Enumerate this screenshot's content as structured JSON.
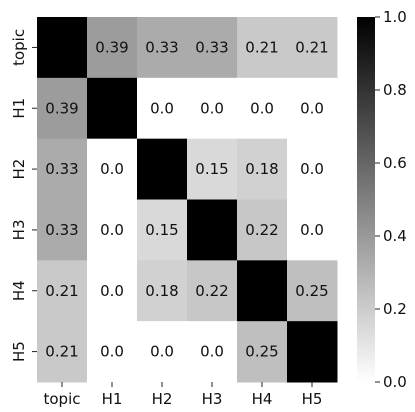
{
  "chart_data": {
    "type": "heatmap",
    "title": "",
    "xlabel": "",
    "ylabel": "",
    "x_labels": [
      "topic",
      "H1",
      "H2",
      "H3",
      "H4",
      "H5"
    ],
    "y_labels": [
      "topic",
      "H1",
      "H2",
      "H3",
      "H4",
      "H5"
    ],
    "values": [
      [
        1.0,
        0.39,
        0.33,
        0.33,
        0.21,
        0.21
      ],
      [
        0.39,
        1.0,
        0.0,
        0.0,
        0.0,
        0.0
      ],
      [
        0.33,
        0.0,
        1.0,
        0.15,
        0.18,
        0.0
      ],
      [
        0.33,
        0.0,
        0.15,
        1.0,
        0.22,
        0.0
      ],
      [
        0.21,
        0.0,
        0.18,
        0.22,
        1.0,
        0.25
      ],
      [
        0.21,
        0.0,
        0.0,
        0.0,
        0.25,
        1.0
      ]
    ],
    "annotations": [
      [
        "",
        "0.39",
        "0.33",
        "0.33",
        "0.21",
        "0.21"
      ],
      [
        "0.39",
        "",
        "0.0",
        "0.0",
        "0.0",
        "0.0"
      ],
      [
        "0.33",
        "0.0",
        "",
        "0.15",
        "0.18",
        "0.0"
      ],
      [
        "0.33",
        "0.0",
        "0.15",
        "",
        "0.22",
        "0.0"
      ],
      [
        "0.21",
        "0.0",
        "0.18",
        "0.22",
        "",
        "0.25"
      ],
      [
        "0.21",
        "0.0",
        "0.0",
        "0.0",
        "0.25",
        ""
      ]
    ],
    "colormap": "Greys",
    "color_low": "#ffffff",
    "color_high": "#000000",
    "vmin": 0.0,
    "vmax": 1.0,
    "colorbar": {
      "ticks": [
        0.0,
        0.2,
        0.4,
        0.6,
        0.8,
        1.0
      ],
      "tick_labels": [
        "0.0",
        "0.2",
        "0.4",
        "0.6",
        "0.8",
        "1.0"
      ]
    },
    "grid": false,
    "legend": "colorbar-right"
  }
}
